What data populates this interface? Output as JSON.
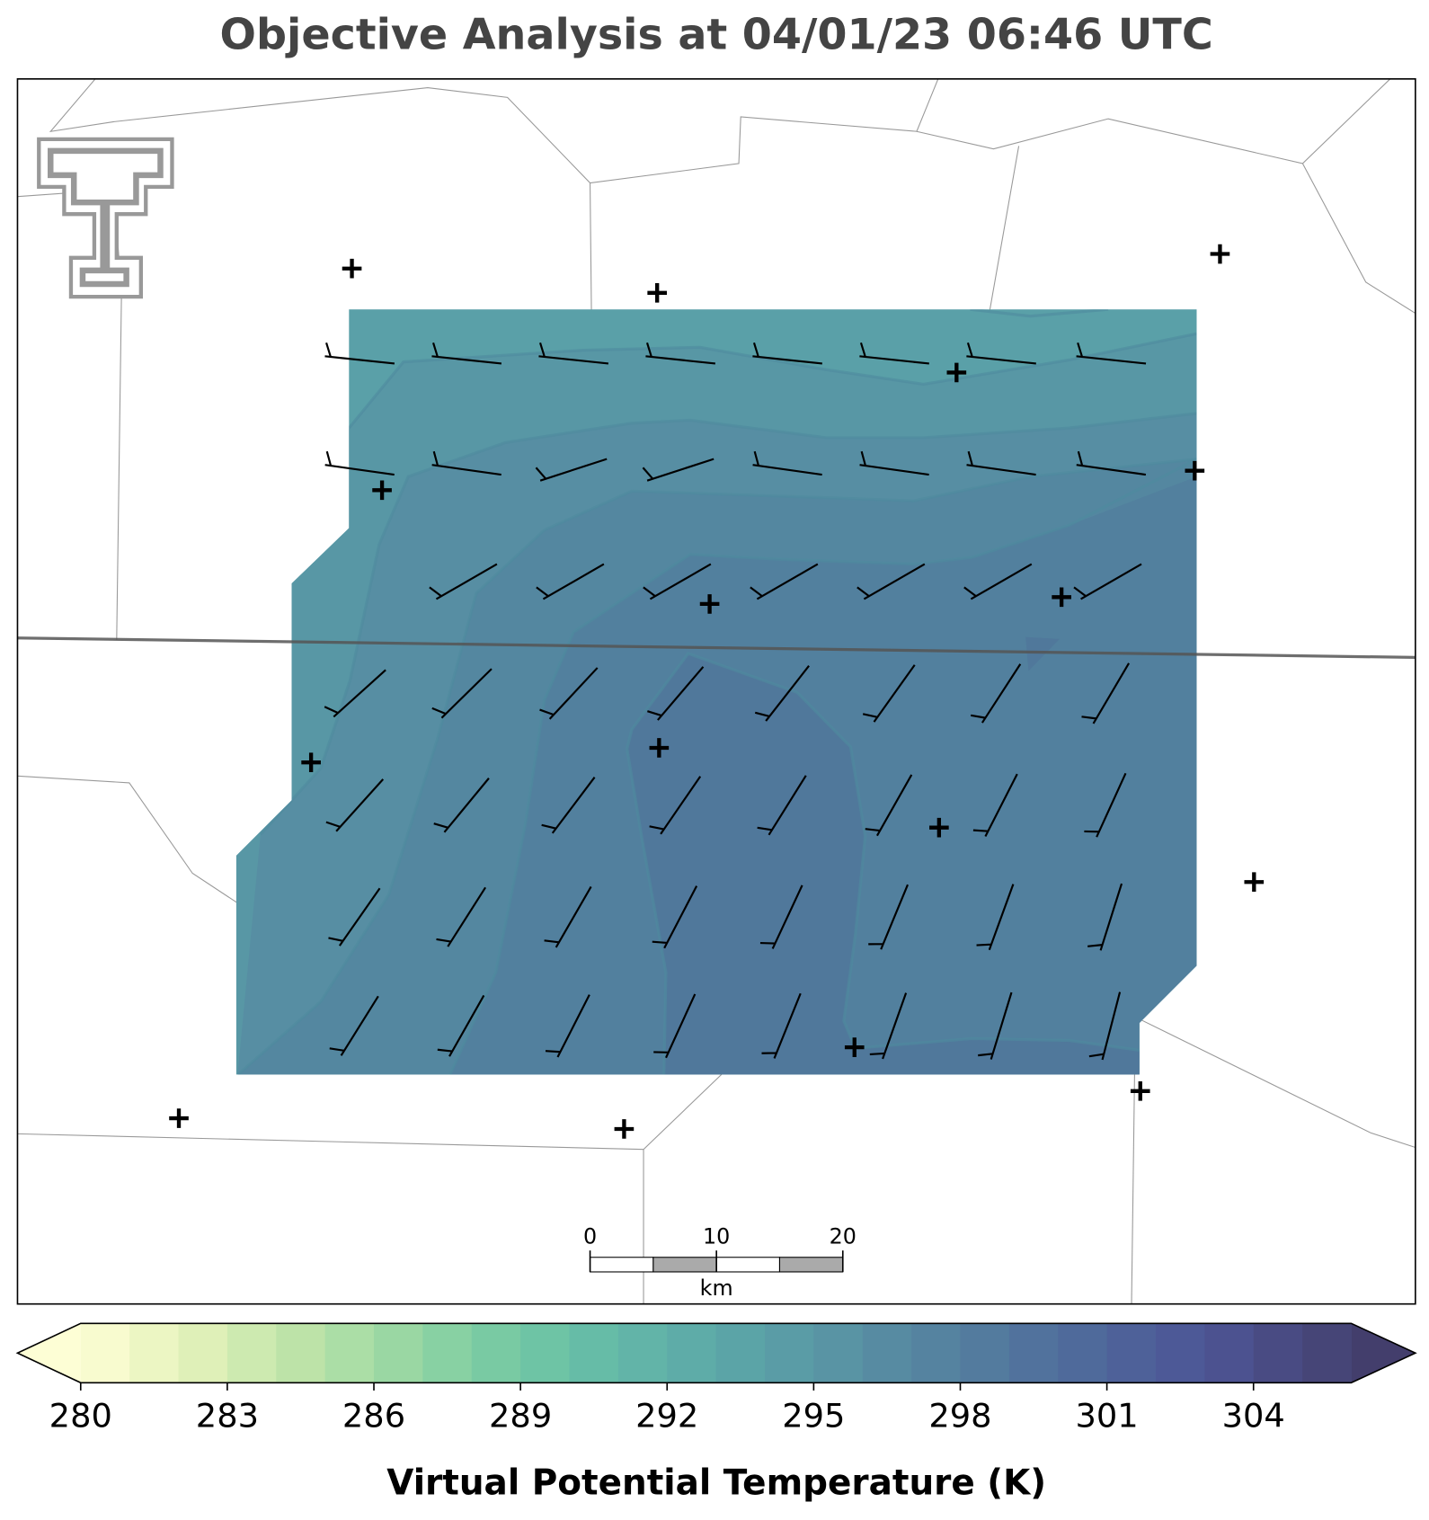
{
  "title": "Objective Analysis at 04/01/23 06:46 UTC",
  "colorbar": {
    "label": "Virtual Potential Temperature (K)",
    "levels": [
      280,
      281,
      282,
      283,
      284,
      285,
      286,
      287,
      288,
      289,
      290,
      291,
      292,
      293,
      294,
      295,
      296,
      297,
      298,
      299,
      300,
      301,
      302,
      303,
      304,
      305,
      306
    ],
    "ticks": [
      280,
      283,
      286,
      289,
      292,
      295,
      298,
      301,
      304
    ],
    "colors": [
      "#f8fbcf",
      "#ecf6c3",
      "#dff0b8",
      "#cdeab0",
      "#bde3a8",
      "#abdea6",
      "#9ad7a3",
      "#88d1a3",
      "#79caa3",
      "#6ec4a5",
      "#66bca7",
      "#62b4a8",
      "#5eaca8",
      "#5ba4a7",
      "#5a9ca6",
      "#5994a4",
      "#578ba2",
      "#5583a0",
      "#537b9e",
      "#51729d",
      "#4f6a9b",
      "#4e6199",
      "#4d5997",
      "#4c5290",
      "#494b83",
      "#464577"
    ],
    "extend_colors": [
      "#fdfed5",
      "#433e6c"
    ]
  },
  "scale_bar": {
    "ticks": [
      0,
      10,
      20
    ],
    "unit": "km"
  }
}
